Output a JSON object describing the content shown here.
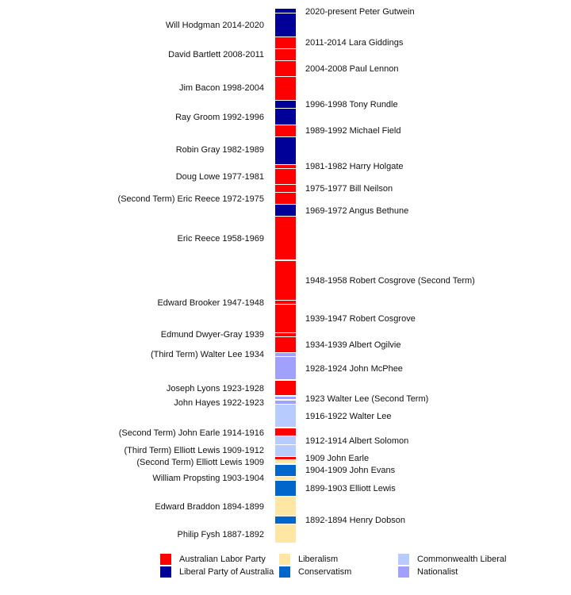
{
  "parties": {
    "labor": {
      "name": "Australian Labor Party",
      "color": "#ff0000"
    },
    "liberal": {
      "name": "Liberal Party of Australia",
      "color": "#000099"
    },
    "liberalism": {
      "name": "Liberalism",
      "color": "#ffe6a3"
    },
    "conservatism": {
      "name": "Conservatism",
      "color": "#0066cc"
    },
    "commonwealth": {
      "name": "Commonwealth Liberal",
      "color": "#b8cbff"
    },
    "nationalist": {
      "name": "Nationalist",
      "color": "#a0a0ff"
    }
  },
  "legend_order": [
    "labor",
    "liberal",
    "liberalism",
    "conservatism",
    "commonwealth",
    "nationalist"
  ],
  "terms": [
    {
      "label": "2020-present Peter Gutwein",
      "party": "liberal",
      "side": "right"
    },
    {
      "label": "Will Hodgman 2014-2020",
      "party": "liberal",
      "side": "left"
    },
    {
      "label": "2011-2014 Lara Giddings",
      "party": "labor",
      "side": "right"
    },
    {
      "label": "David Bartlett 2008-2011",
      "party": "labor",
      "side": "left"
    },
    {
      "label": "2004-2008 Paul Lennon",
      "party": "labor",
      "side": "right"
    },
    {
      "label": "Jim Bacon 1998-2004",
      "party": "labor",
      "side": "left"
    },
    {
      "label": "1996-1998 Tony Rundle",
      "party": "liberal",
      "side": "right"
    },
    {
      "label": "Ray Groom 1992-1996",
      "party": "liberal",
      "side": "left"
    },
    {
      "label": "1989-1992 Michael Field",
      "party": "labor",
      "side": "right"
    },
    {
      "label": "Robin Gray 1982-1989",
      "party": "liberal",
      "side": "left"
    },
    {
      "label": "1981-1982 Harry Holgate",
      "party": "labor",
      "side": "right"
    },
    {
      "label": "Doug Lowe 1977-1981",
      "party": "labor",
      "side": "left"
    },
    {
      "label": "1975-1977 Bill Neilson",
      "party": "labor",
      "side": "right"
    },
    {
      "label": "(Second Term) Eric Reece 1972-1975",
      "party": "labor",
      "side": "left"
    },
    {
      "label": "1969-1972 Angus Bethune",
      "party": "liberal",
      "side": "right"
    },
    {
      "label": "Eric Reece 1958-1969",
      "party": "labor",
      "side": "left"
    },
    {
      "label": "1948-1958 Robert Cosgrove (Second Term)",
      "party": "labor",
      "side": "right"
    },
    {
      "label": "Edward Brooker 1947-1948",
      "party": "labor",
      "side": "left"
    },
    {
      "label": "1939-1947 Robert Cosgrove",
      "party": "labor",
      "side": "right"
    },
    {
      "label": "Edmund Dwyer-Gray 1939",
      "party": "labor",
      "side": "left"
    },
    {
      "label": "1934-1939 Albert Ogilvie",
      "party": "labor",
      "side": "right"
    },
    {
      "label": "(Third Term) Walter Lee 1934",
      "party": "nationalist",
      "side": "left"
    },
    {
      "label": "1928-1924 John McPhee",
      "party": "nationalist",
      "side": "right"
    },
    {
      "label": "Joseph Lyons 1923-1928",
      "party": "labor",
      "side": "left"
    },
    {
      "label": "John Hayes 1922-1923",
      "party": "nationalist",
      "side": "left"
    },
    {
      "label": "1923 Walter Lee (Second Term)",
      "party": "nationalist",
      "side": "right"
    },
    {
      "label": "1916-1922 Walter Lee",
      "party": "commonwealth",
      "side": "right"
    },
    {
      "label": "(Second Term) John Earle 1914-1916",
      "party": "labor",
      "side": "left"
    },
    {
      "label": "1912-1914 Albert Solomon",
      "party": "commonwealth",
      "side": "right"
    },
    {
      "label": "(Third Term) Elliott Lewis 1909-1912",
      "party": "commonwealth",
      "side": "left"
    },
    {
      "label": "1909 John Earle",
      "party": "labor",
      "side": "right"
    },
    {
      "label": "(Second Term) Elliott Lewis 1909",
      "party": "liberalism",
      "side": "left"
    },
    {
      "label": "1904-1909 John Evans",
      "party": "conservatism",
      "side": "right"
    },
    {
      "label": "William Propsting 1903-1904",
      "party": "liberalism",
      "side": "left"
    },
    {
      "label": "1899-1903 Elliott Lewis",
      "party": "conservatism",
      "side": "right"
    },
    {
      "label": "Edward Braddon 1894-1899",
      "party": "liberalism",
      "side": "left"
    },
    {
      "label": "1892-1894 Henry Dobson",
      "party": "conservatism",
      "side": "right"
    },
    {
      "label": "Philip Fysh 1887-1892",
      "party": "liberalism",
      "side": "left"
    }
  ]
}
